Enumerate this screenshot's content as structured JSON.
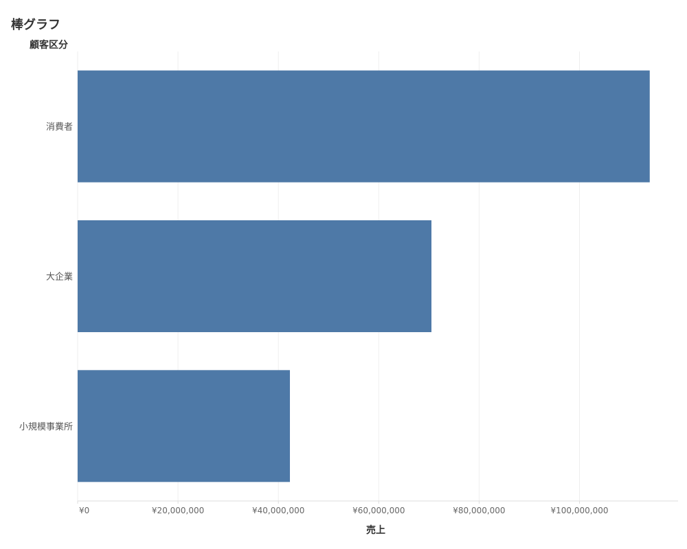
{
  "page": {
    "title": "棒グラフ"
  },
  "chart_data": {
    "type": "bar",
    "orientation": "horizontal",
    "title": "棒グラフ",
    "row_header": "顧客区分",
    "xlabel": "売上",
    "ylabel": "顧客区分",
    "categories": [
      "消費者",
      "大企業",
      "小規模事業所"
    ],
    "values": [
      114000000,
      70500000,
      42300000
    ],
    "xlim": [
      0,
      120000000
    ],
    "x_ticks": [
      0,
      20000000,
      40000000,
      60000000,
      80000000,
      100000000
    ],
    "x_tick_labels": [
      "¥0",
      "¥20,000,000",
      "¥40,000,000",
      "¥60,000,000",
      "¥80,000,000",
      "¥100,000,000"
    ],
    "grid": true,
    "legend": "none",
    "colors": {
      "bar": "#4e79a7",
      "grid": "#eeeeee",
      "axis": "#dddddd"
    }
  }
}
